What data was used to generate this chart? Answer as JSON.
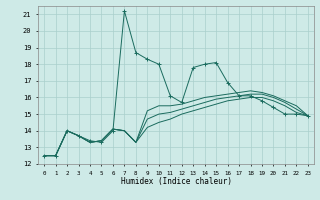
{
  "xlabel": "Humidex (Indice chaleur)",
  "background_color": "#ceeae7",
  "grid_color": "#aacfcc",
  "line_color": "#1a6b5e",
  "xlim": [
    -0.5,
    23.5
  ],
  "ylim": [
    12,
    21.5
  ],
  "xticks": [
    0,
    1,
    2,
    3,
    4,
    5,
    6,
    7,
    8,
    9,
    10,
    11,
    12,
    13,
    14,
    15,
    16,
    17,
    18,
    19,
    20,
    21,
    22,
    23
  ],
  "yticks": [
    12,
    13,
    14,
    15,
    16,
    17,
    18,
    19,
    20,
    21
  ],
  "series1_x": [
    0,
    1,
    2,
    3,
    4,
    5,
    6,
    7,
    8,
    9,
    10,
    11,
    12,
    13,
    14,
    15,
    16,
    17,
    18,
    19,
    20,
    21,
    22,
    23
  ],
  "series1_y": [
    12.5,
    12.5,
    14.0,
    13.7,
    13.4,
    13.3,
    14.0,
    21.2,
    18.7,
    18.3,
    18.0,
    16.1,
    15.7,
    17.8,
    18.0,
    18.1,
    16.9,
    16.1,
    16.1,
    15.8,
    15.4,
    15.0,
    15.0,
    14.9
  ],
  "series2_x": [
    0,
    1,
    2,
    3,
    4,
    5,
    6,
    7,
    8,
    9,
    10,
    11,
    12,
    13,
    14,
    15,
    16,
    17,
    18,
    19,
    20,
    21,
    22,
    23
  ],
  "series2_y": [
    12.5,
    12.5,
    14.0,
    13.7,
    13.3,
    13.4,
    14.1,
    14.0,
    13.3,
    15.2,
    15.5,
    15.5,
    15.6,
    15.8,
    16.0,
    16.1,
    16.2,
    16.3,
    16.4,
    16.3,
    16.1,
    15.8,
    15.5,
    14.9
  ],
  "series3_x": [
    0,
    1,
    2,
    3,
    4,
    5,
    6,
    7,
    8,
    9,
    10,
    11,
    12,
    13,
    14,
    15,
    16,
    17,
    18,
    19,
    20,
    21,
    22,
    23
  ],
  "series3_y": [
    12.5,
    12.5,
    14.0,
    13.7,
    13.3,
    13.4,
    14.1,
    14.0,
    13.3,
    14.7,
    15.0,
    15.1,
    15.3,
    15.5,
    15.7,
    15.9,
    16.0,
    16.1,
    16.2,
    16.2,
    16.0,
    15.7,
    15.3,
    14.9
  ],
  "series4_x": [
    0,
    1,
    2,
    3,
    4,
    5,
    6,
    7,
    8,
    9,
    10,
    11,
    12,
    13,
    14,
    15,
    16,
    17,
    18,
    19,
    20,
    21,
    22,
    23
  ],
  "series4_y": [
    12.5,
    12.5,
    14.0,
    13.7,
    13.3,
    13.4,
    14.1,
    14.0,
    13.3,
    14.2,
    14.5,
    14.7,
    15.0,
    15.2,
    15.4,
    15.6,
    15.8,
    15.9,
    16.0,
    16.0,
    15.8,
    15.5,
    15.1,
    14.9
  ]
}
